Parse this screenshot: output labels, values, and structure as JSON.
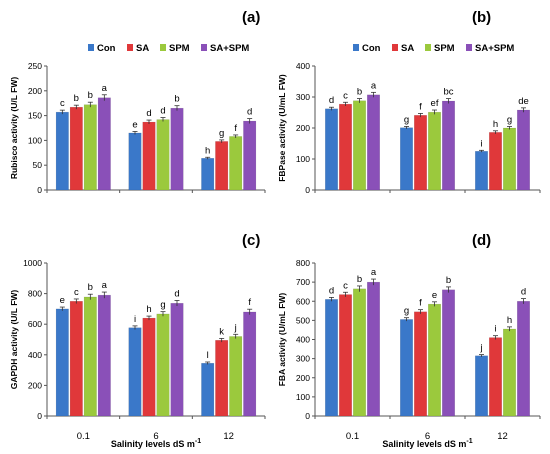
{
  "colors": {
    "Con": "#3a78c9",
    "SA": "#e0383a",
    "SPM": "#9bc93d",
    "SA+SPM": "#8a50b8"
  },
  "chart_data": [
    {
      "type": "bar",
      "panel": "(a)",
      "categories": [
        "0.1",
        "6",
        "12"
      ],
      "ylabel": "Rubisco activity (U/L FW)",
      "xlabel": "",
      "ylim": [
        0,
        250
      ],
      "yticks": [
        0,
        50,
        100,
        150,
        200,
        250
      ],
      "legend": "top",
      "series": [
        {
          "name": "Con",
          "values": [
            157,
            115,
            64
          ],
          "errors": [
            4,
            3,
            2
          ],
          "letters": [
            "c",
            "e",
            "h"
          ]
        },
        {
          "name": "SA",
          "values": [
            167,
            137,
            98
          ],
          "errors": [
            4,
            4,
            3
          ],
          "letters": [
            "b",
            "d",
            "g"
          ]
        },
        {
          "name": "SPM",
          "values": [
            172,
            142,
            108
          ],
          "errors": [
            5,
            4,
            3
          ],
          "letters": [
            "b",
            "d",
            "f"
          ]
        },
        {
          "name": "SA+SPM",
          "values": [
            186,
            165,
            139
          ],
          "errors": [
            6,
            5,
            5
          ],
          "letters": [
            "a",
            "b",
            "d"
          ]
        }
      ]
    },
    {
      "type": "bar",
      "panel": "(b)",
      "categories": [
        "0.1",
        "6",
        "12"
      ],
      "ylabel": "FBPase activity (U/mL FW)",
      "xlabel": "",
      "ylim": [
        0,
        400
      ],
      "yticks": [
        0,
        100,
        200,
        300,
        400
      ],
      "legend": "top",
      "series": [
        {
          "name": "Con",
          "values": [
            262,
            201,
            125
          ],
          "errors": [
            5,
            4,
            3
          ],
          "letters": [
            "d",
            "g",
            "i"
          ]
        },
        {
          "name": "SA",
          "values": [
            277,
            241,
            186
          ],
          "errors": [
            6,
            6,
            5
          ],
          "letters": [
            "c",
            "f",
            "h"
          ]
        },
        {
          "name": "SPM",
          "values": [
            288,
            251,
            200
          ],
          "errors": [
            7,
            7,
            5
          ],
          "letters": [
            "b",
            "ef",
            "g"
          ]
        },
        {
          "name": "SA+SPM",
          "values": [
            307,
            287,
            258
          ],
          "errors": [
            8,
            8,
            7
          ],
          "letters": [
            "a",
            "bc",
            "de"
          ]
        }
      ]
    },
    {
      "type": "bar",
      "panel": "(c)",
      "categories": [
        "0.1",
        "6",
        "12"
      ],
      "ylabel": "GAPDH activity (U/L FW)",
      "xlabel": "Salinity levels dS m",
      "xlabel_sup": "-1",
      "ylim": [
        0,
        1000
      ],
      "yticks": [
        0,
        200,
        400,
        600,
        800,
        1000
      ],
      "series": [
        {
          "name": "Con",
          "values": [
            700,
            577,
            345
          ],
          "errors": [
            12,
            12,
            8
          ],
          "letters": [
            "e",
            "i",
            "l"
          ]
        },
        {
          "name": "SA",
          "values": [
            750,
            640,
            495
          ],
          "errors": [
            15,
            13,
            12
          ],
          "letters": [
            "c",
            "h",
            "k"
          ]
        },
        {
          "name": "SPM",
          "values": [
            778,
            667,
            520
          ],
          "errors": [
            18,
            15,
            14
          ],
          "letters": [
            "b",
            "g",
            "j"
          ]
        },
        {
          "name": "SA+SPM",
          "values": [
            790,
            737,
            680
          ],
          "errors": [
            20,
            18,
            18
          ],
          "letters": [
            "a",
            "d",
            "f"
          ]
        }
      ]
    },
    {
      "type": "bar",
      "panel": "(d)",
      "categories": [
        "0.1",
        "6",
        "12"
      ],
      "ylabel": "FBA activity (U/mL FW)",
      "xlabel": "Salinity levels dS m",
      "xlabel_sup": "-1",
      "ylim": [
        0,
        800
      ],
      "yticks": [
        0,
        100,
        200,
        300,
        400,
        500,
        600,
        700,
        800
      ],
      "series": [
        {
          "name": "Con",
          "values": [
            610,
            505,
            315
          ],
          "errors": [
            10,
            9,
            6
          ],
          "letters": [
            "d",
            "g",
            "j"
          ]
        },
        {
          "name": "SA",
          "values": [
            635,
            545,
            410
          ],
          "errors": [
            12,
            11,
            10
          ],
          "letters": [
            "c",
            "f",
            "i"
          ]
        },
        {
          "name": "SPM",
          "values": [
            665,
            585,
            455
          ],
          "errors": [
            15,
            12,
            11
          ],
          "letters": [
            "b",
            "e",
            "h"
          ]
        },
        {
          "name": "SA+SPM",
          "values": [
            700,
            660,
            600
          ],
          "errors": [
            16,
            15,
            14
          ],
          "letters": [
            "a",
            "b",
            "d"
          ]
        }
      ]
    }
  ]
}
